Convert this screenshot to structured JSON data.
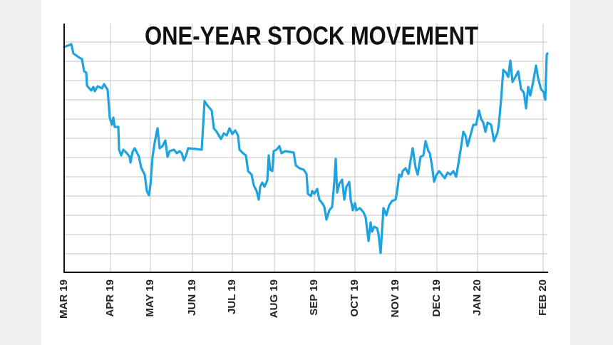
{
  "chart_data": {
    "type": "line",
    "title": "ONE-YEAR STOCK MOVEMENT",
    "x": [
      0,
      10,
      13,
      20,
      25,
      28,
      31,
      32,
      38,
      41,
      43,
      47,
      53,
      56,
      61,
      64,
      67,
      69,
      71,
      76,
      77,
      80,
      83,
      88,
      92,
      93,
      96,
      99,
      105,
      108,
      113,
      116,
      119,
      121,
      124,
      127,
      131,
      134,
      138,
      142,
      145,
      148,
      154,
      158,
      162,
      165,
      168,
      171,
      174,
      193,
      197,
      201,
      207,
      210,
      214,
      220,
      224,
      228,
      232,
      236,
      240,
      244,
      246,
      251,
      255,
      258,
      263,
      266,
      270,
      273,
      275,
      278,
      281,
      285,
      287,
      289,
      292,
      294,
      298,
      302,
      305,
      310,
      322,
      325,
      330,
      336,
      340,
      342,
      346,
      348,
      351,
      355,
      358,
      362,
      365,
      368,
      372,
      376,
      379,
      381,
      383,
      386,
      390,
      393,
      396,
      400,
      402,
      405,
      408,
      410,
      415,
      420,
      423,
      427,
      430,
      432,
      435,
      439,
      441,
      444,
      448,
      452,
      456,
      460,
      465,
      468,
      470,
      473,
      475,
      479,
      483,
      486,
      489,
      493,
      496,
      500,
      504,
      507,
      511,
      513,
      516,
      519,
      522,
      526,
      530,
      534,
      538,
      542,
      546,
      550,
      553,
      557,
      560,
      563,
      566,
      570,
      574,
      578,
      582,
      585,
      588,
      591,
      594,
      599,
      603,
      608,
      610,
      613,
      616,
      620,
      623,
      626,
      629,
      633,
      637,
      641,
      645,
      648,
      651,
      654,
      658,
      662,
      665,
      669,
      673,
      675,
      677,
      678
    ],
    "series": [
      {
        "color": "#1ea3e0",
        "values": [
          316,
          320,
          307,
          302,
          299,
          282,
          280,
          262,
          255,
          260,
          254,
          261,
          258,
          264,
          256,
          217,
          207,
          217,
          204,
          204,
          172,
          164,
          172,
          167,
          162,
          154,
          169,
          174,
          162,
          147,
          137,
          114,
          108,
          122,
          162,
          182,
          202,
          174,
          177,
          185,
          162,
          170,
          172,
          167,
          170,
          167,
          157,
          164,
          174,
          172,
          240,
          234,
          227,
          202,
          197,
          187,
          195,
          192,
          202,
          194,
          199,
          192,
          172,
          167,
          164,
          142,
          137,
          122,
          114,
          102,
          120,
          126,
          120,
          129,
          164,
          144,
          142,
          170,
          172,
          177,
          167,
          170,
          168,
          150,
          146,
          144,
          138,
          110,
          107,
          114,
          110,
          117,
          102,
          97,
          92,
          74,
          87,
          92,
          127,
          159,
          112,
          124,
          130,
          102,
          120,
          127,
          102,
          87,
          97,
          87,
          90,
          84,
          77,
          44,
          70,
          57,
          64,
          62,
          54,
          27,
          90,
          80,
          94,
          100,
          102,
          120,
          137,
          134,
          142,
          146,
          138,
          157,
          174,
          147,
          137,
          162,
          164,
          184,
          170,
          167,
          150,
          127,
          136,
          142,
          137,
          132,
          140,
          137,
          142,
          134,
          152,
          177,
          197,
          192,
          177,
          192,
          207,
          207,
          227,
          215,
          210,
          197,
          210,
          207,
          184,
          196,
          209,
          242,
          284,
          280,
          274,
          297,
          267,
          274,
          282,
          257,
          252,
          230,
          260,
          248,
          267,
          290,
          272,
          257,
          252,
          242,
          305,
          307
        ]
      }
    ],
    "xlim": [
      0,
      678
    ],
    "xticks": [
      {
        "value": 0,
        "label": "MAR 19"
      },
      {
        "value": 65,
        "label": "APR 19"
      },
      {
        "value": 121,
        "label": "MAY 19"
      },
      {
        "value": 180,
        "label": "JUN 19"
      },
      {
        "value": 236,
        "label": "JUL 19"
      },
      {
        "value": 295,
        "label": "AUG 19"
      },
      {
        "value": 351,
        "label": "SEP 19"
      },
      {
        "value": 408,
        "label": "OCT 19"
      },
      {
        "value": 465,
        "label": "NOV 19"
      },
      {
        "value": 523,
        "label": "DEC 19"
      },
      {
        "value": 580,
        "label": "JAN 20"
      },
      {
        "value": 672,
        "label": "FEB 20"
      }
    ],
    "ylim": [
      0,
      349
    ],
    "yticks": [
      26,
      53,
      80,
      107,
      134,
      161,
      188,
      215,
      242,
      269,
      296,
      323
    ],
    "grid": true
  }
}
